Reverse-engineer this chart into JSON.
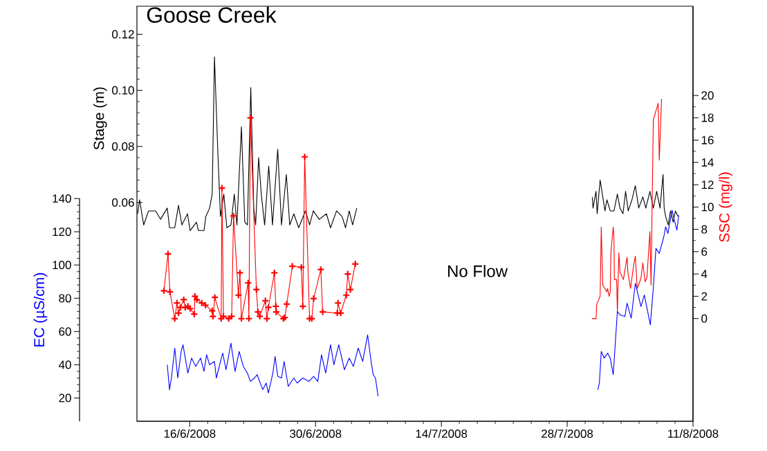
{
  "chart_data": {
    "type": "line",
    "title": "Goose Creek",
    "ylabel": "Stage (m)",
    "y2label": "SSC (mg/l)",
    "y3label": "EC (µS/cm)",
    "xlim": [
      "2008-06-10T03:00",
      "2008-08-11"
    ],
    "xticks": [
      {
        "value": "2008-06-16",
        "label": "16/6/2008"
      },
      {
        "value": "2008-06-30",
        "label": "30/6/2008"
      },
      {
        "value": "2008-07-14",
        "label": "14/7/2008"
      },
      {
        "value": "2008-07-28",
        "label": "28/7/2008"
      },
      {
        "value": "2008-08-11",
        "label": "11/8/2008"
      }
    ],
    "ylim": [
      -0.018,
      0.13
    ],
    "yticks": [
      0.06,
      0.08,
      {
        "value": 0.1,
        "label": "0.10"
      },
      0.12
    ],
    "y2lim": [
      -9.2,
      28
    ],
    "y2ticks": [
      0,
      2,
      4,
      6,
      8,
      10,
      12,
      14,
      16,
      18,
      20
    ],
    "y3lim": [
      6,
      140
    ],
    "y3ticks": [
      20,
      40,
      60,
      80,
      100,
      120,
      140
    ],
    "annotations": [
      "No Flow"
    ],
    "series": [
      {
        "axis": "y",
        "color": "#000000",
        "x": [
          "2008-06-10T05:00",
          "2008-06-10T10:00",
          "2008-06-10T21:00",
          "2008-06-11T10:00",
          "2008-06-12T05:00",
          "2008-06-12T18:00",
          "2008-06-13T12:00",
          "2008-06-13T18:00",
          "2008-06-14T08:00",
          "2008-06-14T18:00",
          "2008-06-15T03:00",
          "2008-06-15T18:00",
          "2008-06-16T01:00",
          "2008-06-16T18:00",
          "2008-06-16T23:00",
          "2008-06-17T14:00",
          "2008-06-17T19:00",
          "2008-06-18T05:00",
          "2008-06-18T12:00",
          "2008-06-18T18:00",
          "2008-06-19T03:00",
          "2008-06-19T10:00",
          "2008-06-19T19:00",
          "2008-06-20T03:00",
          "2008-06-20T14:00",
          "2008-06-20T23:00",
          "2008-06-21T06:00",
          "2008-06-21T18:00",
          "2008-06-22T03:00",
          "2008-06-22T10:00",
          "2008-06-22T19:00",
          "2008-06-23T03:00",
          "2008-06-23T08:00",
          "2008-06-23T16:00",
          "2008-06-23T23:00",
          "2008-06-24T08:00",
          "2008-06-24T19:00",
          "2008-06-25T05:00",
          "2008-06-25T19:00",
          "2008-06-26T05:00",
          "2008-06-26T18:00",
          "2008-06-27T03:00",
          "2008-06-27T14:00",
          "2008-06-28T03:00",
          "2008-06-28T21:00",
          "2008-06-29T08:00",
          "2008-06-29T18:00",
          "2008-06-30T10:00",
          "2008-07-01T05:00",
          "2008-07-01T16:00",
          "2008-07-02T08:00",
          "2008-07-02T23:00",
          "2008-07-03T08:00",
          "2008-07-03T18:00",
          "2008-07-04T03:00",
          "2008-07-04T14:00",
          "2008-07-18",
          "2008-07-30T19:00",
          "2008-07-30T21:00",
          "2008-07-31T05:00",
          "2008-07-31T08:00",
          "2008-07-31T16:00",
          "2008-07-31T23:00",
          "2008-08-01T05:00",
          "2008-08-01T10:00",
          "2008-08-01T19:00",
          "2008-08-02T05:00",
          "2008-08-02T14:00",
          "2008-08-02T21:00",
          "2008-08-03T05:00",
          "2008-08-03T12:00",
          "2008-08-03T19:00",
          "2008-08-04T05:00",
          "2008-08-04T14:00",
          "2008-08-04T23:00",
          "2008-08-05T10:00",
          "2008-08-05T18:00",
          "2008-08-06T05:00",
          "2008-08-06T14:00",
          "2008-08-06T23:00",
          "2008-08-07T08:00",
          "2008-08-07T16:00",
          "2008-08-07T19:00",
          "2008-08-07T23:00",
          "2008-08-08T06:00",
          "2008-08-08T12:00",
          "2008-08-08T19:00",
          "2008-08-09T01:00",
          "2008-08-09T08:00"
        ],
        "values": [
          0.056,
          0.061,
          0.052,
          0.057,
          0.057,
          0.054,
          0.058,
          0.051,
          0.051,
          0.059,
          0.052,
          0.056,
          0.05,
          0.053,
          0.05,
          0.05,
          0.055,
          0.058,
          0.063,
          0.112,
          0.078,
          0.055,
          0.063,
          0.051,
          0.052,
          0.063,
          0.052,
          0.087,
          0.053,
          0.052,
          0.101,
          0.058,
          0.052,
          0.076,
          0.063,
          0.052,
          0.073,
          0.052,
          0.079,
          0.052,
          0.07,
          0.052,
          0.056,
          0.051,
          0.057,
          0.052,
          0.057,
          0.054,
          0.056,
          0.051,
          0.057,
          0.055,
          0.051,
          0.057,
          0.052,
          0.058,
          null,
          0.062,
          0.058,
          0.064,
          0.056,
          0.068,
          0.062,
          0.057,
          0.061,
          0.057,
          0.057,
          0.063,
          0.058,
          0.056,
          0.064,
          0.057,
          0.061,
          0.066,
          0.058,
          0.062,
          0.058,
          0.064,
          0.058,
          0.064,
          0.058,
          0.07,
          0.058,
          0.055,
          0.052,
          0.057,
          0.053,
          0.057,
          0.055
        ]
      },
      {
        "axis": "y2",
        "color": "#ff0000",
        "marker": "cross",
        "x": [
          "2008-06-13T03:00",
          "2008-06-13T14:00",
          "2008-06-13T19:00",
          "2008-06-14T08:00",
          "2008-06-14T14:00",
          "2008-06-14T18:00",
          "2008-06-14T23:00",
          "2008-06-15T08:00",
          "2008-06-15T12:00",
          "2008-06-15T19:00",
          "2008-06-16T01:00",
          "2008-06-16T12:00",
          "2008-06-16T14:00",
          "2008-06-16T19:00",
          "2008-06-17T08:00",
          "2008-06-17T18:00",
          "2008-06-18T12:00",
          "2008-06-18T14:00",
          "2008-06-18T19:00",
          "2008-06-19T12:00",
          "2008-06-19T14:00",
          "2008-06-19T18:00",
          "2008-06-20T08:00",
          "2008-06-20T16:00",
          "2008-06-20T21:00",
          "2008-06-21T10:00",
          "2008-06-21T14:00",
          "2008-06-21T18:00",
          "2008-06-22T12:00",
          "2008-06-22T14:00",
          "2008-06-22T18:00",
          "2008-06-23T10:00",
          "2008-06-23T14:00",
          "2008-06-23T19:00",
          "2008-06-24T10:00",
          "2008-06-24T14:00",
          "2008-06-24T18:00",
          "2008-06-25T10:00",
          "2008-06-25T14:00",
          "2008-06-25T15:00",
          "2008-06-26T10:00",
          "2008-06-26T14:00",
          "2008-06-26T19:00",
          "2008-06-27T10:00",
          "2008-06-28T10:00",
          "2008-06-28T14:00",
          "2008-06-28T19:00",
          "2008-06-29T08:00",
          "2008-06-29T14:00",
          "2008-06-29T19:00",
          "2008-06-30T14:00",
          "2008-06-30T19:00",
          "2008-07-02T10:00",
          "2008-07-02T12:00",
          "2008-07-02T19:00",
          "2008-07-03T10:00",
          "2008-07-03T14:00",
          "2008-07-03T21:00",
          "2008-07-04T10:00"
        ],
        "values": [
          2.5,
          5.8,
          2.4,
          0,
          1.4,
          0.5,
          1.0,
          1.7,
          1.0,
          1.1,
          0.9,
          0.4,
          2.0,
          1.7,
          1.4,
          1.2,
          0.7,
          0.2,
          1.9,
          0,
          11.7,
          0.2,
          0,
          0.2,
          9.2,
          2.1,
          4.1,
          0,
          3.2,
          0,
          18.0,
          2.6,
          0.6,
          0.2,
          1.6,
          0,
          1.0,
          4.1,
          1.1,
          0.6,
          0,
          0.1,
          1.3,
          4.7,
          4.6,
          1.1,
          14.5,
          0,
          0,
          1.8,
          4.4,
          0.6,
          0.5,
          1.4,
          0.5,
          2.1,
          4.0,
          2.6,
          4.9
        ]
      },
      {
        "axis": "y2",
        "color": "#ff0000",
        "x": [
          "2008-07-30T18:00",
          "2008-07-31T05:00",
          "2008-07-31T07:00",
          "2008-07-31T16:00",
          "2008-07-31T19:00",
          "2008-07-31T23:00",
          "2008-08-01T10:00",
          "2008-08-01T12:00",
          "2008-08-01T16:00",
          "2008-08-01T19:00",
          "2008-08-01T21:00",
          "2008-08-02T03:00",
          "2008-08-02T05:00",
          "2008-08-02T06:00",
          "2008-08-02T12:00",
          "2008-08-02T14:00",
          "2008-08-02T18:00",
          "2008-08-02T21:00",
          "2008-08-03T06:00",
          "2008-08-03T16:00",
          "2008-08-03T18:00",
          "2008-08-04T01:00",
          "2008-08-04T10:00",
          "2008-08-04T14:00",
          "2008-08-04T19:00",
          "2008-08-05T05:00",
          "2008-08-05T10:00",
          "2008-08-05T16:00",
          "2008-08-05T21:00",
          "2008-08-06T05:00",
          "2008-08-06T08:00",
          "2008-08-06T14:00",
          "2008-08-07T03:00",
          "2008-08-07T06:00",
          "2008-08-07T12:00"
        ],
        "values": [
          0,
          0,
          1.3,
          2.0,
          8.2,
          3.0,
          2.4,
          2.7,
          2.0,
          2.4,
          6.1,
          8.2,
          7.1,
          3.5,
          3.5,
          0.6,
          5.9,
          4.2,
          3.5,
          5.5,
          4.2,
          2.7,
          4.9,
          5.6,
          2.7,
          3.6,
          5.0,
          3.3,
          3.7,
          7.8,
          3.0,
          17.8,
          19.3,
          14.2,
          19.7
        ]
      },
      {
        "axis": "y3",
        "color": "#0000ff",
        "x": [
          "2008-06-13T12:00",
          "2008-06-13T18:00",
          "2008-06-13T23:00",
          "2008-06-14T08:00",
          "2008-06-14T16:00",
          "2008-06-15T01:00",
          "2008-06-15T06:00",
          "2008-06-15T19:00",
          "2008-06-16T05:00",
          "2008-06-16T16:00",
          "2008-06-17T05:00",
          "2008-06-17T14:00",
          "2008-06-17T21:00",
          "2008-06-18T05:00",
          "2008-06-18T18:00",
          "2008-06-18T23:00",
          "2008-06-19T16:00",
          "2008-06-20T01:00",
          "2008-06-20T14:00",
          "2008-06-21T01:00",
          "2008-06-21T12:00",
          "2008-06-21T23:00",
          "2008-06-22T10:00",
          "2008-06-22T18:00",
          "2008-06-23T05:00",
          "2008-06-23T12:00",
          "2008-06-24T03:00",
          "2008-06-24T12:00",
          "2008-06-24T18:00",
          "2008-06-25T06:00",
          "2008-06-25T12:00",
          "2008-06-25T19:00",
          "2008-06-26T05:00",
          "2008-06-26T12:00",
          "2008-06-26T23:00",
          "2008-06-27T14:00",
          "2008-06-27T23:00",
          "2008-06-28T14:00",
          "2008-06-29T06:00",
          "2008-06-29T19:00",
          "2008-06-30T06:00",
          "2008-06-30T16:00",
          "2008-07-01T03:00",
          "2008-07-01T16:00",
          "2008-07-02T01:00",
          "2008-07-02T14:00",
          "2008-07-03T05:00",
          "2008-07-03T18:00",
          "2008-07-04T05:00",
          "2008-07-04T18:00",
          "2008-07-05T06:00",
          "2008-07-05T19:00",
          "2008-07-06T05:00",
          "2008-07-06T10:00",
          "2008-07-06T16:00",
          "2008-07-06T23:00",
          "2008-07-18",
          "2008-07-31T10:00",
          "2008-07-31T14:00",
          "2008-07-31T19:00",
          "2008-08-01T03:00",
          "2008-08-01T12:00",
          "2008-08-01T19:00",
          "2008-08-02T03:00",
          "2008-08-02T14:00",
          "2008-08-02T21:00",
          "2008-08-03T10:00",
          "2008-08-03T16:00",
          "2008-08-04T03:00",
          "2008-08-04T14:00",
          "2008-08-05T05:00",
          "2008-08-05T14:00",
          "2008-08-05T23:00",
          "2008-08-06T06:00",
          "2008-08-06T14:00",
          "2008-08-06T21:00",
          "2008-08-07T06:00",
          "2008-08-07T18:00",
          "2008-08-07T23:00",
          "2008-08-08T05:00",
          "2008-08-08T16:00",
          "2008-08-08T21:00",
          "2008-08-09T05:00",
          "2008-08-09T10:00"
        ],
        "values": [
          40,
          25,
          32,
          50,
          32,
          48,
          52,
          35,
          44,
          39,
          44,
          36,
          46,
          40,
          42,
          32,
          47,
          37,
          53,
          36,
          48,
          39,
          35,
          30,
          32,
          34,
          25,
          29,
          23,
          35,
          45,
          33,
          32,
          42,
          27,
          32,
          29,
          32,
          30,
          33,
          30,
          46,
          35,
          52,
          40,
          52,
          37,
          44,
          39,
          50,
          42,
          58,
          41,
          34,
          32,
          21,
          null,
          25,
          29,
          48,
          44,
          47,
          44,
          34,
          72,
          70,
          69,
          77,
          68,
          89,
          75,
          82,
          72,
          64,
          86,
          110,
          107,
          117,
          123,
          119,
          133,
          128,
          121,
          130
        ]
      }
    ]
  }
}
